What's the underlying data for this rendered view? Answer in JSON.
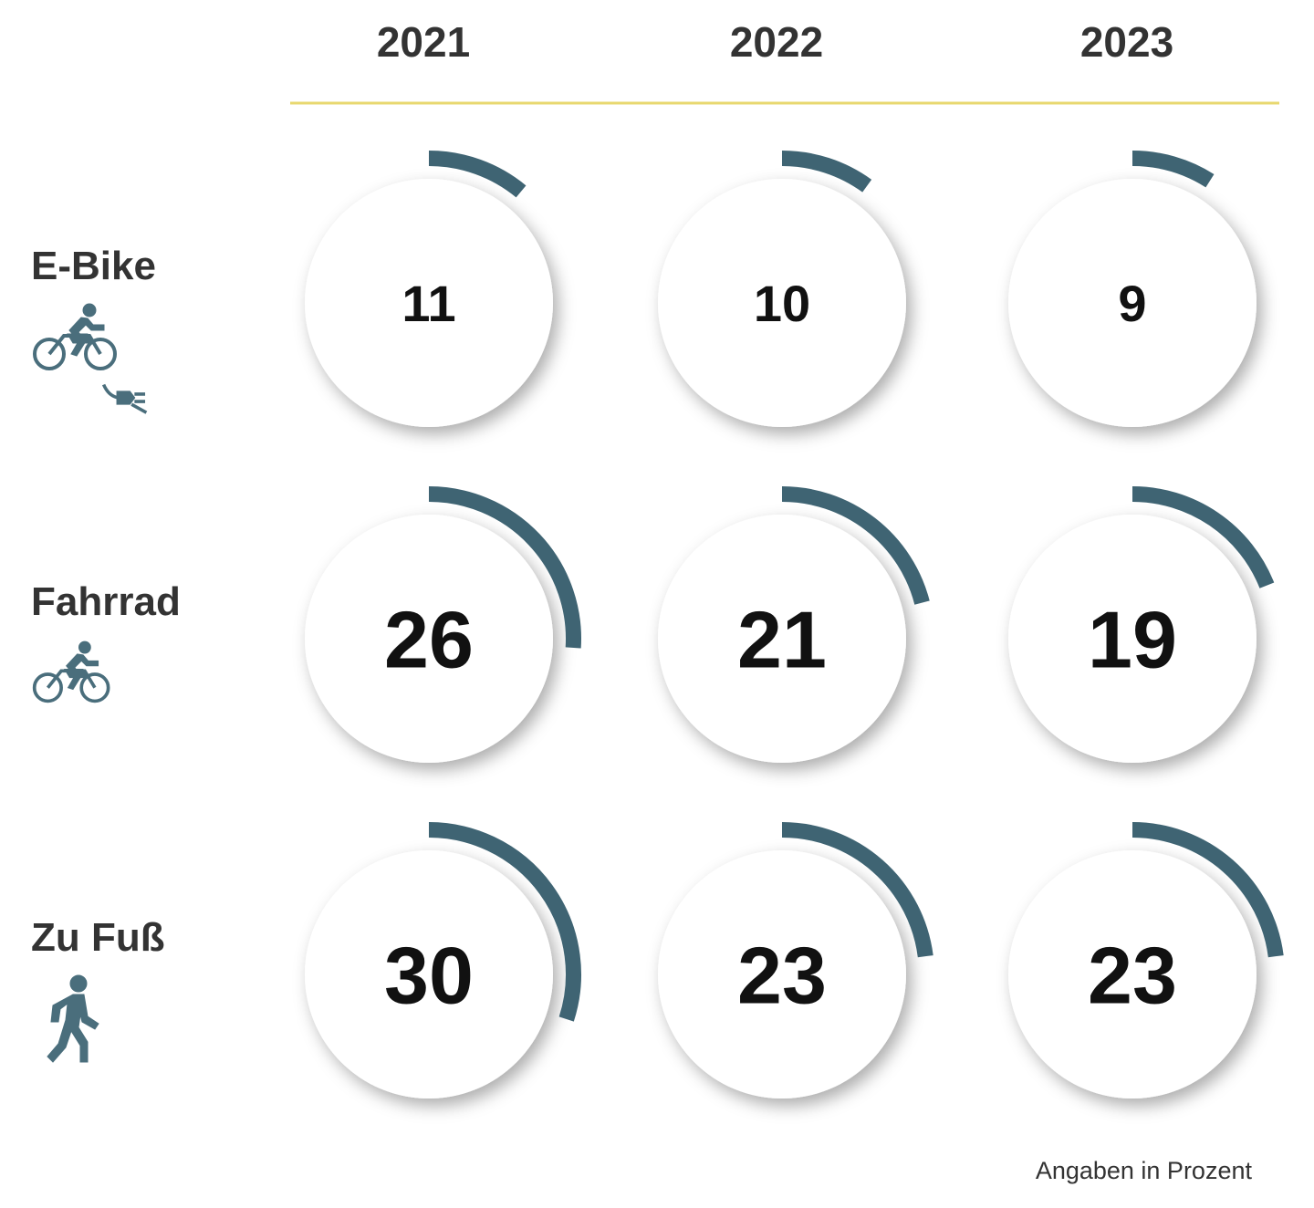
{
  "chart_data": {
    "type": "radial-progress-grid",
    "years": [
      "2021",
      "2022",
      "2023"
    ],
    "categories": [
      {
        "name": "E-Bike",
        "icon": "e-bike-icon",
        "values": [
          11,
          10,
          9
        ]
      },
      {
        "name": "Fahrrad",
        "icon": "bicycle-icon",
        "values": [
          26,
          21,
          19
        ]
      },
      {
        "name": "Zu Fuß",
        "icon": "pedestrian-icon",
        "values": [
          30,
          23,
          23
        ]
      }
    ],
    "value_unit": "percent",
    "scale_max": 100,
    "note": "Angaben in Prozent"
  },
  "colors": {
    "arc": "#3f6473",
    "icon": "#4a6e7c",
    "divider": "#e8d870",
    "text": "#333333",
    "value_text": "#111111"
  }
}
